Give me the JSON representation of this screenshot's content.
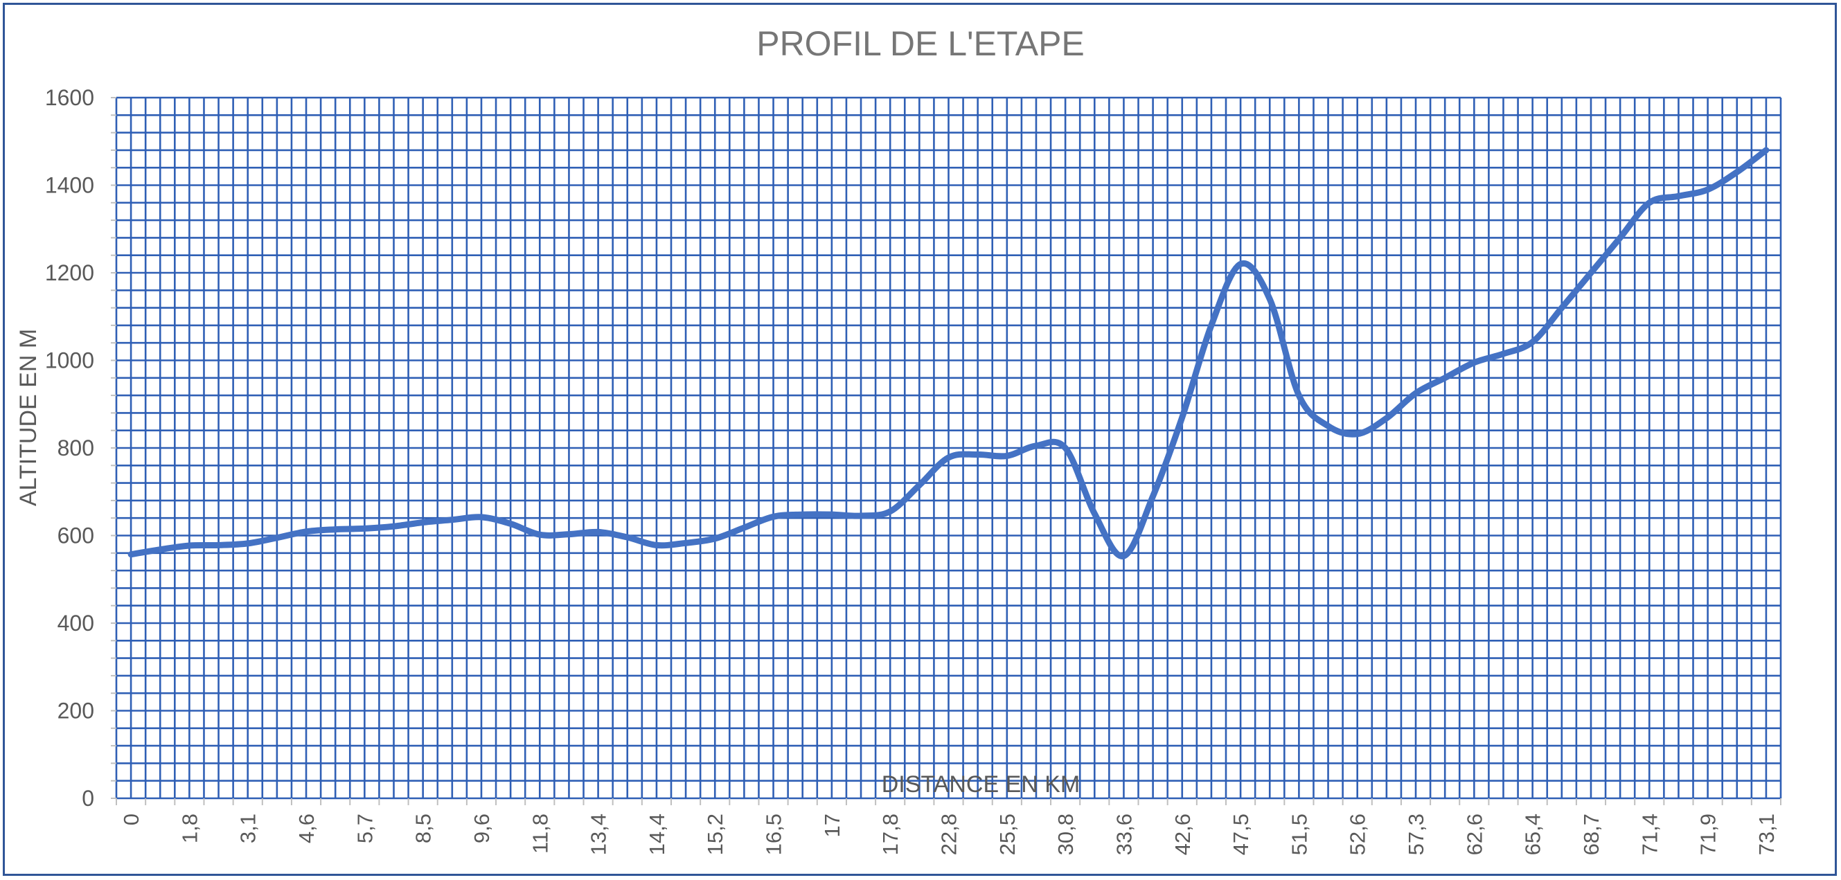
{
  "chart_data": {
    "type": "line",
    "title": "PROFIL DE L'ETAPE",
    "xlabel": "DISTANCE EN KM",
    "ylabel": "ALTITUDE EN M",
    "ylim": [
      0,
      1600
    ],
    "yticks": [
      "0",
      "200",
      "400",
      "600",
      "800",
      "1000",
      "1200",
      "1400",
      "1600"
    ],
    "categories": [
      "0",
      "",
      "1,8",
      "",
      "3,1",
      "",
      "4,6",
      "",
      "5,7",
      "",
      "8,5",
      "",
      "9,6",
      "",
      "11,8",
      "",
      "13,4",
      "",
      "14,4",
      "",
      "15,2",
      "",
      "16,5",
      "",
      "17",
      "",
      "17,8",
      "",
      "22,8",
      "",
      "25,5",
      "",
      "30,8",
      "",
      "33,6",
      "",
      "42,6",
      "",
      "47,5",
      "",
      "51,5",
      "",
      "52,6",
      "",
      "57,3",
      "",
      "62,6",
      "",
      "65,4",
      "",
      "68,7",
      "",
      "71,4",
      "",
      "71,9",
      "",
      "73,1"
    ],
    "series": [
      {
        "values": [
          557,
          568,
          577,
          578,
          582,
          595,
          609,
          614,
          616,
          621,
          630,
          636,
          642,
          627,
          602,
          603,
          608,
          596,
          578,
          583,
          593,
          618,
          643,
          648,
          648,
          645,
          655,
          715,
          778,
          785,
          782,
          805,
          800,
          650,
          553,
          690,
          870,
          1080,
          1220,
          1140,
          920,
          850,
          832,
          868,
          925,
          960,
          995,
          1015,
          1042,
          1120,
          1200,
          1280,
          1360,
          1375,
          1390,
          1430,
          1480
        ]
      }
    ],
    "grid": true,
    "legend": "none",
    "line_color": "#4472c4",
    "grid_color": "#2f5fb5",
    "frame_color": "#2f5597"
  }
}
